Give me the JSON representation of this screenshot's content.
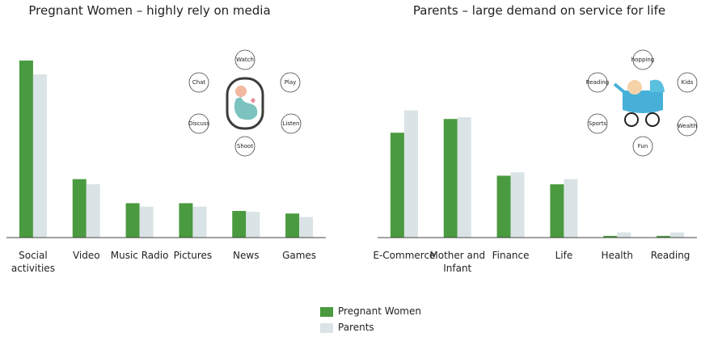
{
  "chart_data": [
    {
      "type": "bar",
      "title": "Pregnant Women – highly rely on media",
      "categories": [
        "Social activities",
        "Video",
        "Music Radio",
        "Pictures",
        "News",
        "Games"
      ],
      "series": [
        {
          "name": "Pregnant Women",
          "color": "#4a9a3f",
          "values": [
            103,
            34,
            20,
            20,
            15.5,
            14
          ]
        },
        {
          "name": "Parents",
          "color": "#dae3e5",
          "values": [
            95,
            31,
            18,
            18,
            15,
            12
          ]
        }
      ],
      "ylim": [
        0,
        110
      ],
      "annotations": [
        "Watch",
        "Chat",
        "Play",
        "Discuss",
        "Listen",
        "Shoot"
      ]
    },
    {
      "type": "bar",
      "title": "Parents  –  large demand on service for life",
      "categories": [
        "E-Commerce",
        "Mother and Infant",
        "Finance",
        "Life",
        "Health",
        "Reading"
      ],
      "series": [
        {
          "name": "Pregnant Women",
          "color": "#4a9a3f",
          "values": [
            61,
            69,
            36,
            31,
            1,
            1
          ]
        },
        {
          "name": "Parents",
          "color": "#dae3e5",
          "values": [
            74,
            70,
            38,
            34,
            3,
            3
          ]
        }
      ],
      "ylim": [
        0,
        110
      ],
      "annotations": [
        "hopping",
        "Reading",
        "Kids",
        "Sports",
        "Wealth",
        "Fun"
      ]
    }
  ]
}
